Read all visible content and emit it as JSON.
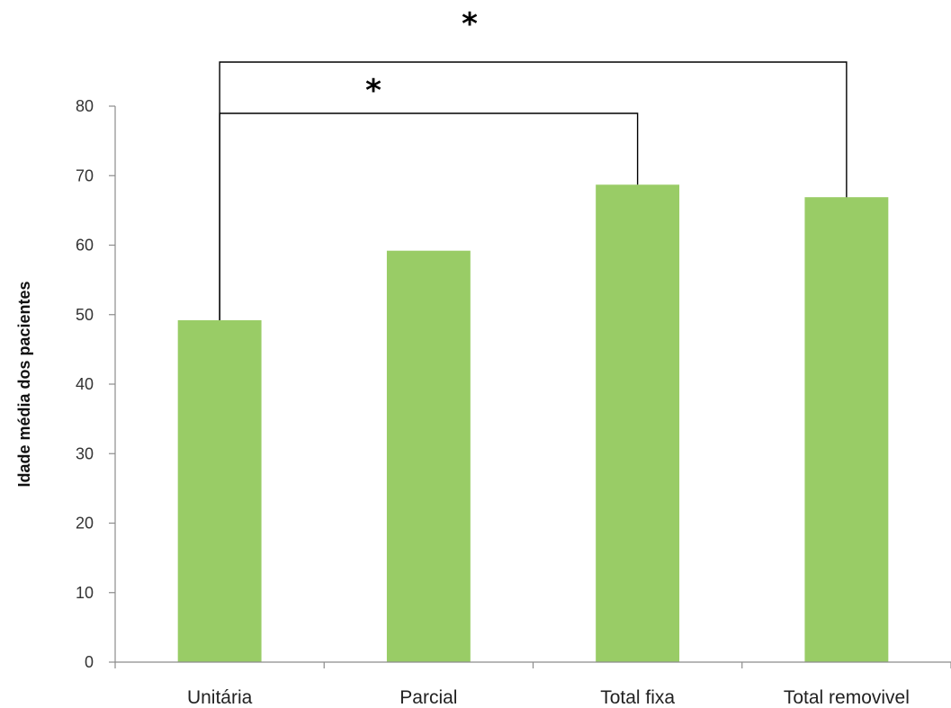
{
  "chart_data": {
    "type": "bar",
    "title": "",
    "xlabel": "",
    "ylabel": "Idade média dos pacientes",
    "categories": [
      "Unitária",
      "Parcial",
      "Total fixa",
      "Total removivel"
    ],
    "values": [
      49.2,
      59.2,
      68.7,
      66.9
    ],
    "ylim": [
      0,
      80
    ],
    "yticks": [
      "0",
      "10",
      "20",
      "30",
      "40",
      "50",
      "60",
      "70",
      "80"
    ],
    "bar_color": "#99cc66",
    "grid": false,
    "legend": "none",
    "annotations": [
      {
        "text": "*",
        "from": "Unitária",
        "to": "Total fixa"
      },
      {
        "text": "*",
        "from": "Unitária",
        "to": "Total removivel"
      }
    ]
  }
}
